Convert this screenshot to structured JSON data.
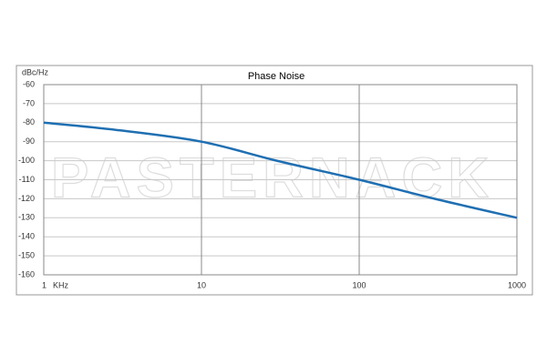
{
  "chart_data": {
    "type": "line",
    "title": "Phase Noise",
    "ylabel": "dBc/Hz",
    "xlabel": "KHz",
    "watermark": "PASTERNACK",
    "xscale": "log",
    "x": [
      1,
      3,
      10,
      30,
      100,
      300,
      1000
    ],
    "series": [
      {
        "name": "Phase Noise",
        "color": "#1f6fb2",
        "values": [
          -80,
          -84,
          -90,
          -100,
          -110,
          -120,
          -130
        ]
      }
    ],
    "xlim": [
      1,
      1000
    ],
    "xticks": [
      1,
      10,
      100,
      1000
    ],
    "ylim": [
      -160,
      -60
    ],
    "yticks": [
      -160,
      -150,
      -140,
      -130,
      -120,
      -110,
      -100,
      -90,
      -80,
      -70,
      -60
    ],
    "grid": true
  }
}
